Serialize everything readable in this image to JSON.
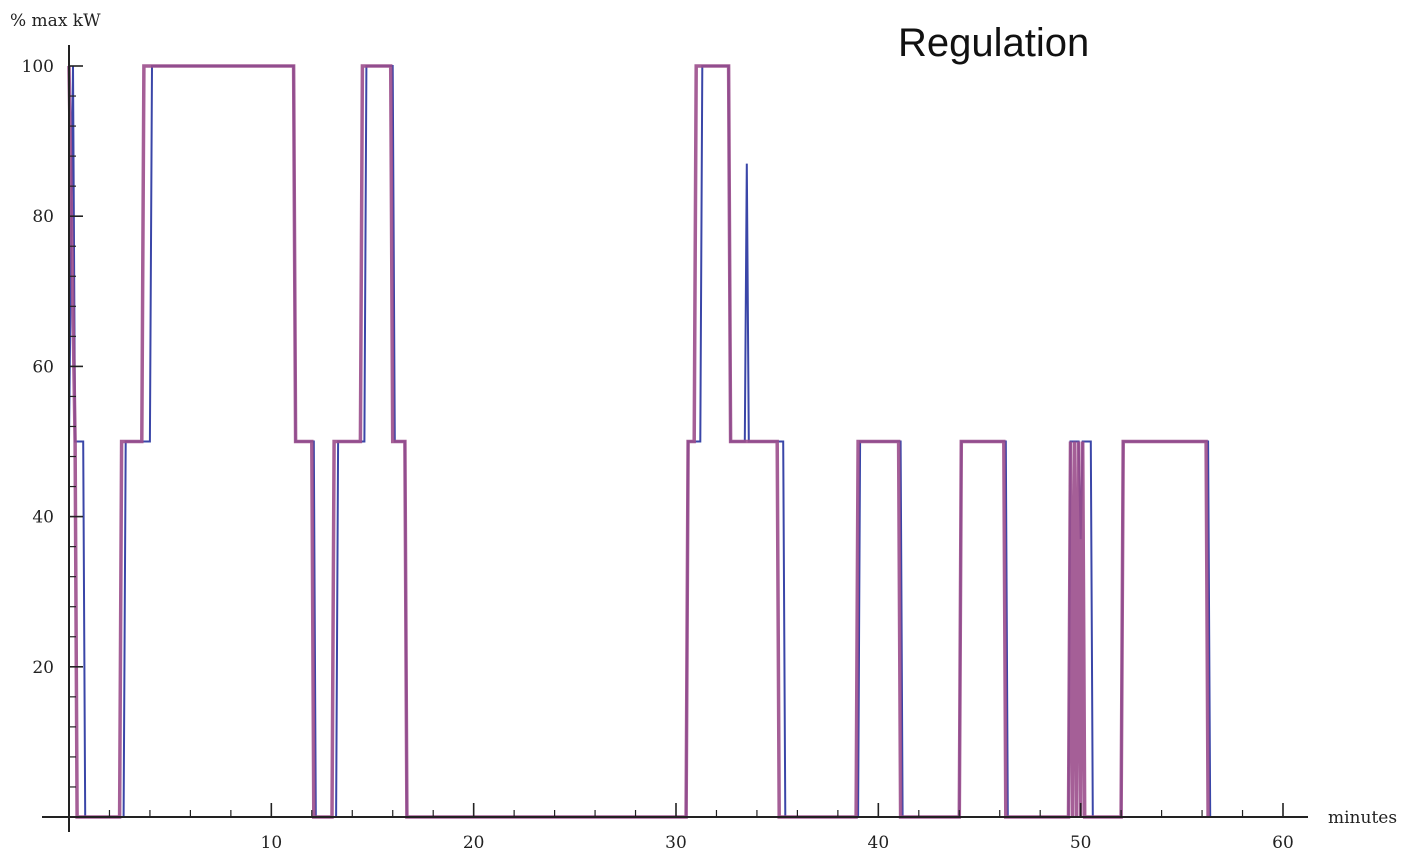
{
  "chart_data": {
    "type": "line",
    "title": "Regulation",
    "xlabel": "minutes",
    "ylabel": "% max kW",
    "xlim": [
      0,
      60
    ],
    "ylim": [
      0,
      100
    ],
    "x_ticks": [
      10,
      20,
      30,
      40,
      50,
      60
    ],
    "x_tick_labels": [
      "10",
      "20",
      "30",
      "40",
      "50",
      "60"
    ],
    "y_ticks": [
      20,
      40,
      60,
      80,
      100
    ],
    "y_tick_labels": [
      "20",
      "40",
      "60",
      "80",
      "100"
    ],
    "grid": false,
    "series": [
      {
        "color": "#3a46a8",
        "points": [
          [
            0,
            50
          ],
          [
            0.2,
            100
          ],
          [
            0.3,
            50
          ],
          [
            0.7,
            50
          ],
          [
            0.8,
            0
          ],
          [
            2.7,
            0
          ],
          [
            2.8,
            50
          ],
          [
            4.0,
            50
          ],
          [
            4.1,
            100
          ],
          [
            11.1,
            100
          ],
          [
            11.2,
            50
          ],
          [
            12.1,
            50
          ],
          [
            12.2,
            0
          ],
          [
            13.2,
            0
          ],
          [
            13.3,
            50
          ],
          [
            14.6,
            50
          ],
          [
            14.7,
            100
          ],
          [
            16.0,
            100
          ],
          [
            16.1,
            50
          ],
          [
            16.6,
            50
          ],
          [
            16.7,
            0
          ],
          [
            30.5,
            0
          ],
          [
            30.6,
            50
          ],
          [
            31.2,
            50
          ],
          [
            31.3,
            100
          ],
          [
            32.6,
            100
          ],
          [
            32.7,
            50
          ],
          [
            33.4,
            50
          ],
          [
            33.5,
            87
          ],
          [
            33.6,
            50
          ],
          [
            35.3,
            50
          ],
          [
            35.4,
            0
          ],
          [
            39.0,
            0
          ],
          [
            39.1,
            50
          ],
          [
            41.1,
            50
          ],
          [
            41.2,
            0
          ],
          [
            44.0,
            0
          ],
          [
            44.1,
            50
          ],
          [
            46.3,
            50
          ],
          [
            46.4,
            0
          ],
          [
            49.4,
            0
          ],
          [
            49.5,
            50
          ],
          [
            49.9,
            50
          ],
          [
            50.0,
            37
          ],
          [
            50.1,
            50
          ],
          [
            50.5,
            50
          ],
          [
            50.6,
            0
          ],
          [
            52.0,
            0
          ],
          [
            52.1,
            50
          ],
          [
            56.3,
            50
          ],
          [
            56.4,
            0
          ]
        ]
      },
      {
        "color": "#9b4e8c",
        "points": [
          [
            0,
            100
          ],
          [
            0.3,
            50
          ],
          [
            0.4,
            0
          ],
          [
            2.5,
            0
          ],
          [
            2.6,
            50
          ],
          [
            3.6,
            50
          ],
          [
            3.7,
            100
          ],
          [
            11.1,
            100
          ],
          [
            11.2,
            50
          ],
          [
            12.0,
            50
          ],
          [
            12.1,
            0
          ],
          [
            13.0,
            0
          ],
          [
            13.1,
            50
          ],
          [
            14.4,
            50
          ],
          [
            14.5,
            100
          ],
          [
            15.9,
            100
          ],
          [
            16.0,
            50
          ],
          [
            16.6,
            50
          ],
          [
            16.7,
            0
          ],
          [
            30.5,
            0
          ],
          [
            30.6,
            50
          ],
          [
            30.9,
            50
          ],
          [
            31.0,
            100
          ],
          [
            32.6,
            100
          ],
          [
            32.7,
            50
          ],
          [
            35.0,
            50
          ],
          [
            35.1,
            0
          ],
          [
            38.9,
            0
          ],
          [
            39.0,
            50
          ],
          [
            41.0,
            50
          ],
          [
            41.1,
            0
          ],
          [
            44.0,
            0
          ],
          [
            44.1,
            50
          ],
          [
            46.2,
            50
          ],
          [
            46.3,
            0
          ],
          [
            49.4,
            0
          ],
          [
            49.5,
            50
          ],
          [
            49.6,
            0
          ],
          [
            49.7,
            50
          ],
          [
            49.8,
            0
          ],
          [
            49.9,
            50
          ],
          [
            50.0,
            0
          ],
          [
            50.1,
            50
          ],
          [
            50.2,
            0
          ],
          [
            52.0,
            0
          ],
          [
            52.1,
            50
          ],
          [
            56.2,
            50
          ],
          [
            56.3,
            0
          ]
        ]
      }
    ]
  }
}
